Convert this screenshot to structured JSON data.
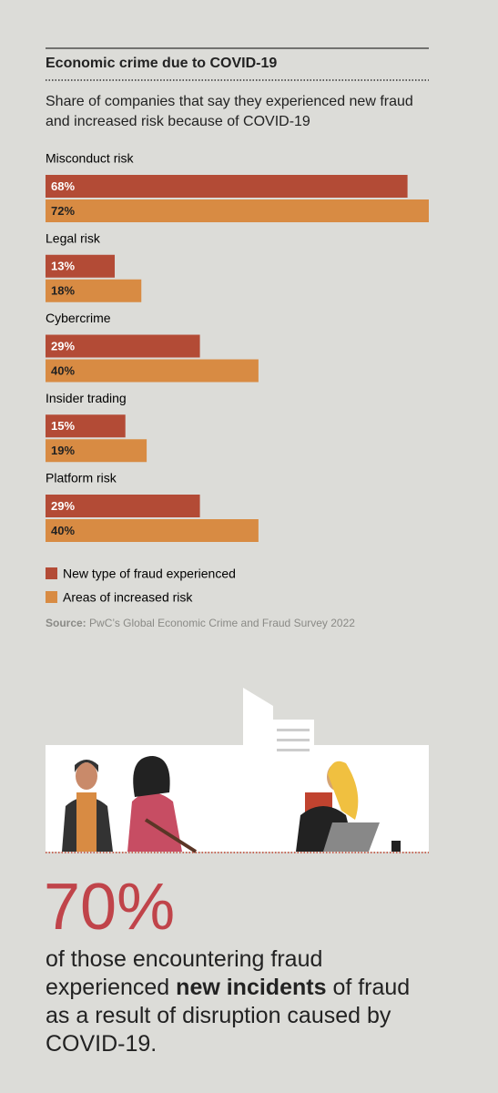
{
  "chart_data": {
    "type": "bar",
    "orientation": "horizontal",
    "title": "Economic crime due to COVID-19",
    "subtitle": "Share of companies that say they experienced new fraud and increased risk because of COVID-19",
    "categories": [
      "Misconduct risk",
      "Legal risk",
      "Cybercrime",
      "Insider trading",
      "Platform risk"
    ],
    "series": [
      {
        "name": "New type of fraud experienced",
        "color": "#b34b36",
        "values": [
          68,
          13,
          29,
          15,
          29
        ],
        "value_labels": [
          "68%",
          "13%",
          "29%",
          "15%",
          "29%"
        ]
      },
      {
        "name": "Areas of increased risk",
        "color": "#d88b43",
        "values": [
          72,
          18,
          40,
          19,
          40
        ],
        "value_labels": [
          "72%",
          "18%",
          "40%",
          "19%",
          "40%"
        ]
      }
    ],
    "source_label": "Source:",
    "source": "PwC’s Global Economic Crime and Fraud Survey 2022"
  },
  "stat": {
    "figure": "70%",
    "text_before": "of those encountering fraud experienced",
    "text_bold": "new incidents",
    "text_after": "of fraud as a result of disruption caused by COVID-19."
  }
}
